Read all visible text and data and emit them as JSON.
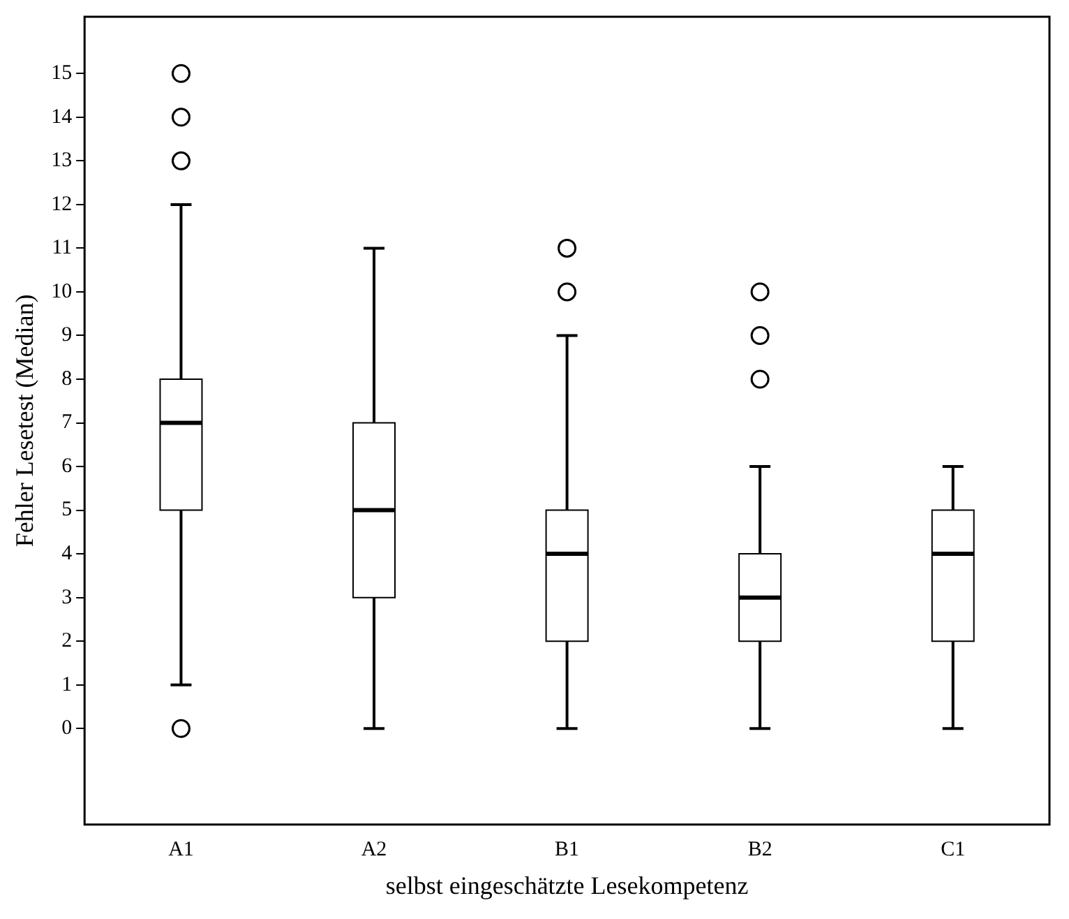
{
  "chart_data": {
    "type": "box",
    "xlabel": "selbst eingeschätzte Lesekompetenz",
    "ylabel": "Fehler Lesetest (Median)",
    "categories": [
      "A1",
      "A2",
      "B1",
      "B2",
      "C1"
    ],
    "boxes": [
      {
        "low": 1,
        "q1": 5,
        "median": 7,
        "q3": 8,
        "high": 12,
        "outliers": [
          0,
          13,
          14,
          15
        ]
      },
      {
        "low": 0,
        "q1": 3,
        "median": 5,
        "q3": 7,
        "high": 11
      },
      {
        "low": 0,
        "q1": 2,
        "median": 4,
        "q3": 5,
        "high": 9,
        "outliers": [
          10,
          11
        ]
      },
      {
        "low": 0,
        "q1": 2,
        "median": 3,
        "q3": 4,
        "high": 6,
        "outliers": [
          8,
          9,
          10
        ]
      },
      {
        "low": 0,
        "q1": 2,
        "median": 4,
        "q3": 5,
        "high": 6
      }
    ],
    "ylim": [
      -2.2,
      16.3
    ],
    "yticks": [
      0,
      1,
      2,
      3,
      4,
      5,
      6,
      7,
      8,
      9,
      10,
      11,
      12,
      13,
      14,
      15
    ],
    "grid": false,
    "legend": false
  }
}
